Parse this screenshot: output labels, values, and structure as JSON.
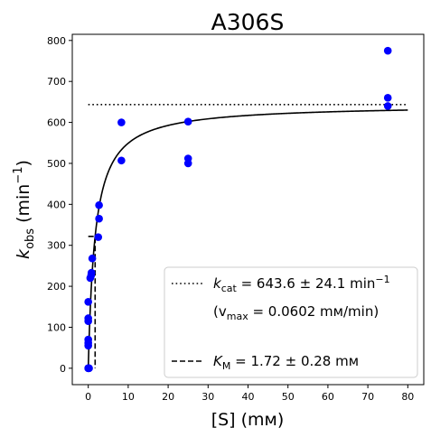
{
  "chart_data": {
    "type": "scatter",
    "title": "A306S",
    "xlabel": "[S] (mм)",
    "ylabel": {
      "main": "k",
      "sub": "obs",
      "unit_pre": " (min",
      "unit_sup": "−1",
      "unit_post": ")"
    },
    "xlim": [
      -4,
      84
    ],
    "ylim": [
      -40,
      815
    ],
    "xticks": [
      0,
      10,
      20,
      30,
      40,
      50,
      60,
      70,
      80
    ],
    "yticks": [
      0,
      100,
      200,
      300,
      400,
      500,
      600,
      700,
      800
    ],
    "grid": false,
    "legend_position": "lower-right",
    "points_color": "#0000ff",
    "curve_color": "#000000",
    "series": [
      {
        "kind": "points",
        "x": [
          0,
          0,
          0,
          0,
          0,
          0,
          0,
          0,
          0.1,
          0.2,
          0.5,
          0.7,
          0.8,
          1.0,
          2.5,
          2.7,
          2.7,
          8.3,
          8.3,
          25,
          25,
          25,
          75,
          75,
          75
        ],
        "y": [
          0,
          0,
          55,
          62,
          70,
          115,
          122,
          162,
          0,
          0,
          220,
          226,
          233,
          268,
          320,
          365,
          398,
          507,
          600,
          500,
          512,
          602,
          640,
          660,
          775
        ]
      },
      {
        "kind": "fit-curve",
        "model": "michaelis-menten",
        "kcat": 643.6,
        "km": 1.72,
        "x_range": [
          0,
          80
        ]
      },
      {
        "kind": "kcat-line",
        "y": 643.6,
        "x_range": [
          0,
          80
        ]
      },
      {
        "kind": "km-line",
        "x": 1.72,
        "y_half": 321.8,
        "x_start": 0
      }
    ],
    "legend": [
      {
        "style": "dotted",
        "label_main": "k",
        "label_sub": "cat",
        "label_rest": " = 643.6 ± 24.1 min",
        "label_sup": "−1"
      },
      {
        "style": "none",
        "label_pre": "(v",
        "label_sub": "max",
        "label_rest": " = 0.0602 mм/min)"
      },
      {
        "style": "dashed",
        "label_main": "K",
        "label_sub": "M",
        "label_rest": " = 1.72 ± 0.28 mм"
      }
    ]
  }
}
